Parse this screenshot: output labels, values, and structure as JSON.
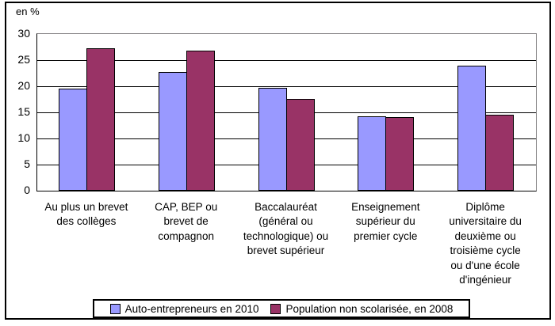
{
  "chart_data": {
    "type": "bar",
    "title": "",
    "ylabel": "en %",
    "xlabel": "",
    "ylim": [
      0,
      30
    ],
    "yticks": [
      0,
      5,
      10,
      15,
      20,
      25,
      30
    ],
    "grid": true,
    "legend_position": "bottom",
    "categories": [
      "Au plus un brevet\ndes collèges",
      "CAP, BEP ou\nbrevet de\ncompagnon",
      "Baccalauréat\n(général ou\ntechnologique) ou\nbrevet supérieur",
      "Enseignement\nsupérieur du\npremier cycle",
      "Diplôme\nuniversitaire du\ndeuxième ou\ntroisième cycle\nou d'une école\nd'ingénieur"
    ],
    "series": [
      {
        "name": "Auto-entrepreneurs en 2010",
        "color": "#9999FF",
        "values": [
          19.5,
          22.8,
          19.7,
          14.2,
          24.0
        ]
      },
      {
        "name": "Population non scolarisée, en 2008",
        "color": "#993366",
        "values": [
          27.2,
          26.8,
          17.6,
          14.1,
          14.6
        ]
      }
    ],
    "colors": {
      "plot_border": "#848284",
      "gridline": "#000000",
      "bar_border": "#000000"
    }
  }
}
